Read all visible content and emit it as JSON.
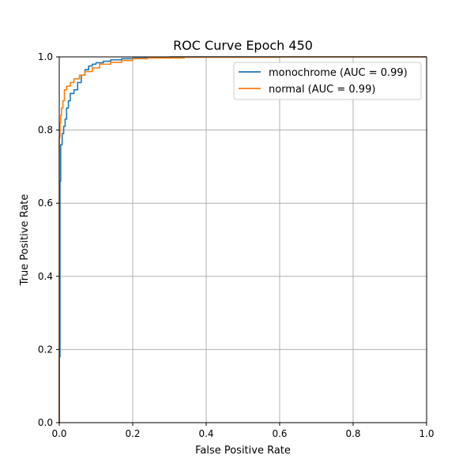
{
  "chart_data": {
    "type": "line",
    "title": "ROC Curve Epoch 450",
    "xlabel": "False Positive Rate",
    "ylabel": "True Positive Rate",
    "xlim": [
      0.0,
      1.0
    ],
    "ylim": [
      0.0,
      1.0
    ],
    "xticks": [
      "0.0",
      "0.2",
      "0.4",
      "0.6",
      "0.8",
      "1.0"
    ],
    "yticks": [
      "0.0",
      "0.2",
      "0.4",
      "0.6",
      "0.8",
      "1.0"
    ],
    "grid": true,
    "legend_position": "upper-right",
    "series": [
      {
        "name": "monochrome (AUC = 0.99)",
        "color": "#1f77b4",
        "x": [
          0.0,
          0.0,
          0.002,
          0.002,
          0.004,
          0.004,
          0.008,
          0.008,
          0.012,
          0.012,
          0.016,
          0.016,
          0.02,
          0.02,
          0.025,
          0.025,
          0.03,
          0.03,
          0.04,
          0.04,
          0.05,
          0.05,
          0.06,
          0.06,
          0.07,
          0.07,
          0.08,
          0.08,
          0.09,
          0.09,
          0.1,
          0.1,
          0.12,
          0.12,
          0.14,
          0.14,
          0.17,
          0.17,
          0.2,
          0.2,
          0.23,
          0.23,
          0.27,
          0.27,
          0.3,
          0.3,
          1.0
        ],
        "y": [
          0.0,
          0.18,
          0.18,
          0.66,
          0.66,
          0.76,
          0.76,
          0.79,
          0.79,
          0.81,
          0.81,
          0.83,
          0.83,
          0.86,
          0.86,
          0.88,
          0.88,
          0.9,
          0.9,
          0.91,
          0.91,
          0.93,
          0.93,
          0.95,
          0.95,
          0.965,
          0.965,
          0.975,
          0.975,
          0.98,
          0.98,
          0.984,
          0.984,
          0.988,
          0.988,
          0.992,
          0.992,
          0.995,
          0.995,
          0.997,
          0.997,
          0.998,
          0.998,
          0.999,
          0.999,
          1.0,
          1.0
        ]
      },
      {
        "name": "normal (AUC = 0.99)",
        "color": "#ff7f0e",
        "x": [
          0.0,
          0.0,
          0.002,
          0.002,
          0.004,
          0.004,
          0.006,
          0.006,
          0.01,
          0.01,
          0.014,
          0.014,
          0.02,
          0.02,
          0.03,
          0.03,
          0.04,
          0.04,
          0.055,
          0.055,
          0.07,
          0.07,
          0.09,
          0.09,
          0.11,
          0.11,
          0.14,
          0.14,
          0.17,
          0.17,
          0.2,
          0.2,
          0.24,
          0.24,
          0.34,
          0.34,
          0.6,
          0.6,
          0.81,
          0.81,
          1.0
        ],
        "y": [
          0.0,
          0.78,
          0.78,
          0.82,
          0.82,
          0.84,
          0.84,
          0.86,
          0.86,
          0.88,
          0.88,
          0.91,
          0.91,
          0.92,
          0.92,
          0.93,
          0.93,
          0.94,
          0.94,
          0.95,
          0.95,
          0.96,
          0.96,
          0.97,
          0.97,
          0.98,
          0.98,
          0.985,
          0.985,
          0.99,
          0.99,
          0.995,
          0.995,
          0.997,
          0.997,
          0.999,
          0.999,
          1.0,
          1.0,
          1.0,
          1.0
        ]
      }
    ]
  }
}
